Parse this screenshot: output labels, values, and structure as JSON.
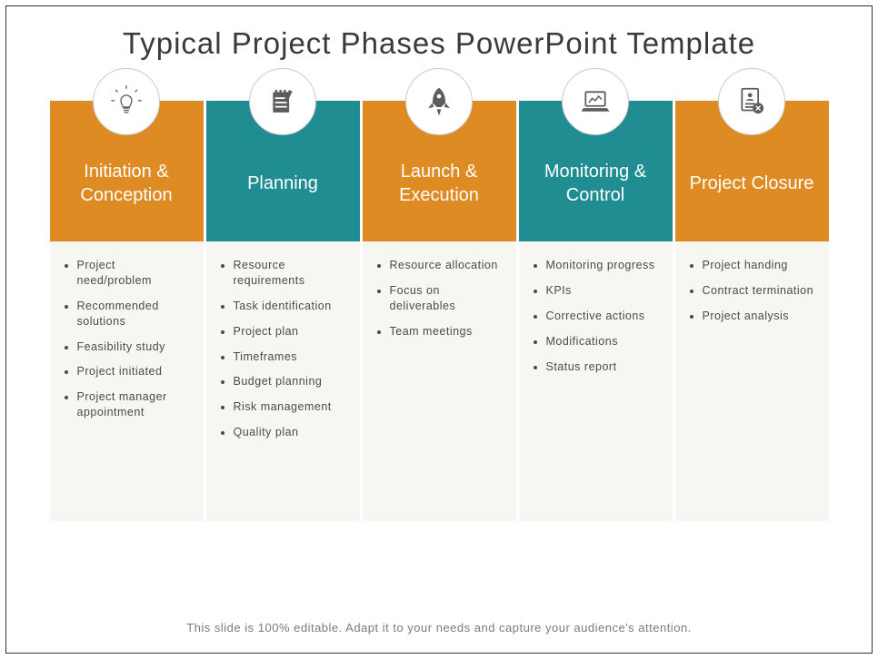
{
  "title": "Typical Project Phases PowerPoint Template",
  "footer": "This slide is 100% editable. Adapt it to your needs and capture your audience's attention.",
  "colors": {
    "orange": "#df8b24",
    "teal": "#1f8d91",
    "body_bg": "#f7f6f3",
    "icon_fill": "#5c5c5c"
  },
  "phases": [
    {
      "label": "Initiation & Conception",
      "color": "#df8b24",
      "icon": "lightbulb",
      "items": [
        "Project need/problem",
        "Recommended solutions",
        "Feasibility study",
        "Project initiated",
        "Project manager appointment"
      ]
    },
    {
      "label": "Planning",
      "color": "#1f8d91",
      "icon": "notepad",
      "items": [
        "Resource requirements",
        "Task identification",
        "Project plan",
        "Timeframes",
        "Budget planning",
        "Risk management",
        "Quality plan"
      ]
    },
    {
      "label": "Launch & Execution",
      "color": "#df8b24",
      "icon": "rocket",
      "items": [
        "Resource allocation",
        "Focus on deliverables",
        "Team meetings"
      ]
    },
    {
      "label": "Monitoring & Control",
      "color": "#1f8d91",
      "icon": "laptop-chart",
      "items": [
        "Monitoring progress",
        "KPIs",
        "Corrective actions",
        "Modifications",
        "Status report"
      ]
    },
    {
      "label": "Project Closure",
      "color": "#df8b24",
      "icon": "document-x",
      "items": [
        "Project handing",
        "Contract termination",
        "Project analysis"
      ]
    }
  ]
}
